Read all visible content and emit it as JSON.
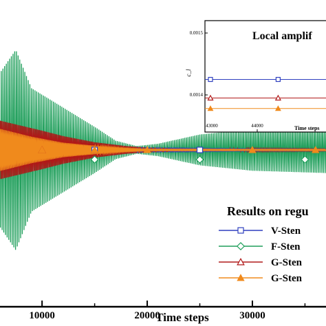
{
  "chart_data": [
    {
      "type": "line",
      "xlabel": "Time steps",
      "ylabel": "",
      "xlim": [
        6000,
        37000
      ],
      "x_ticks": [
        10000,
        20000,
        30000
      ],
      "x_tick_labels": [
        "10000",
        "20000",
        "30000"
      ],
      "legend": {
        "title": "Results on regu",
        "placement": "bottom-right"
      },
      "series": [
        {
          "name": "V-Sten",
          "color": "#2e3fbf",
          "marker": "square-open",
          "envelope": [
            [
              6000,
              0.1
            ],
            [
              10000,
              0.06
            ],
            [
              15000,
              0.03
            ],
            [
              20000,
              0.02
            ],
            [
              25000,
              0.015
            ],
            [
              30000,
              0.01
            ],
            [
              37000,
              0.008
            ]
          ],
          "marker_x": [
            15000,
            25000
          ]
        },
        {
          "name": "F-Sten",
          "color": "#1e9e5a",
          "marker": "diamond-open",
          "envelope": [
            [
              6000,
              1.0
            ],
            [
              7500,
              1.3
            ],
            [
              9000,
              0.8
            ],
            [
              12000,
              0.55
            ],
            [
              15000,
              0.3
            ],
            [
              17000,
              0.12
            ],
            [
              19000,
              0.05
            ],
            [
              21000,
              0.08
            ],
            [
              25000,
              0.2
            ],
            [
              30000,
              0.27
            ],
            [
              37000,
              0.3
            ]
          ],
          "marker_x": [
            15000,
            25000,
            35000
          ]
        },
        {
          "name": "G-Sten",
          "color": "#b01818",
          "marker": "triangle-open",
          "envelope": [
            [
              6000,
              0.38
            ],
            [
              10000,
              0.25
            ],
            [
              12000,
              0.18
            ],
            [
              15000,
              0.1
            ],
            [
              18000,
              0.05
            ],
            [
              20000,
              0.03
            ],
            [
              25000,
              0.02
            ],
            [
              30000,
              0.015
            ],
            [
              37000,
              0.01
            ]
          ],
          "marker_x": [
            10000,
            15000
          ]
        },
        {
          "name": "G-Sten",
          "color": "#f08a1c",
          "marker": "triangle-filled",
          "envelope": [
            [
              6000,
              0.35
            ],
            [
              9000,
              0.22
            ],
            [
              12000,
              0.12
            ],
            [
              15000,
              0.07
            ],
            [
              18000,
              0.03
            ],
            [
              20000,
              0.015
            ],
            [
              30000,
              0.01
            ],
            [
              37000,
              0.01
            ]
          ],
          "marker_x": [
            6500,
            10000,
            15000,
            20000,
            30000,
            36000
          ]
        }
      ]
    },
    {
      "type": "line",
      "title": "Local amplif",
      "xlabel": "Time steps",
      "ylabel": "c_l",
      "xlim": [
        43000,
        45500
      ],
      "ylim": [
        0.00136,
        0.00152
      ],
      "x_ticks": [
        43000,
        44000
      ],
      "x_tick_labels": [
        "43000",
        "44000"
      ],
      "y_ticks": [
        0.0014,
        0.0015
      ],
      "y_tick_labels": [
        "0.0014",
        "0.0015"
      ],
      "series": [
        {
          "name": "V-Sten",
          "color": "#2e3fbf",
          "marker": "square-open",
          "value": 0.001425
        },
        {
          "name": "G-Sten",
          "color": "#b01818",
          "marker": "triangle-open",
          "value": 0.001395
        },
        {
          "name": "G-Sten",
          "color": "#f08a1c",
          "marker": "triangle-filled",
          "value": 0.001378
        }
      ]
    }
  ]
}
